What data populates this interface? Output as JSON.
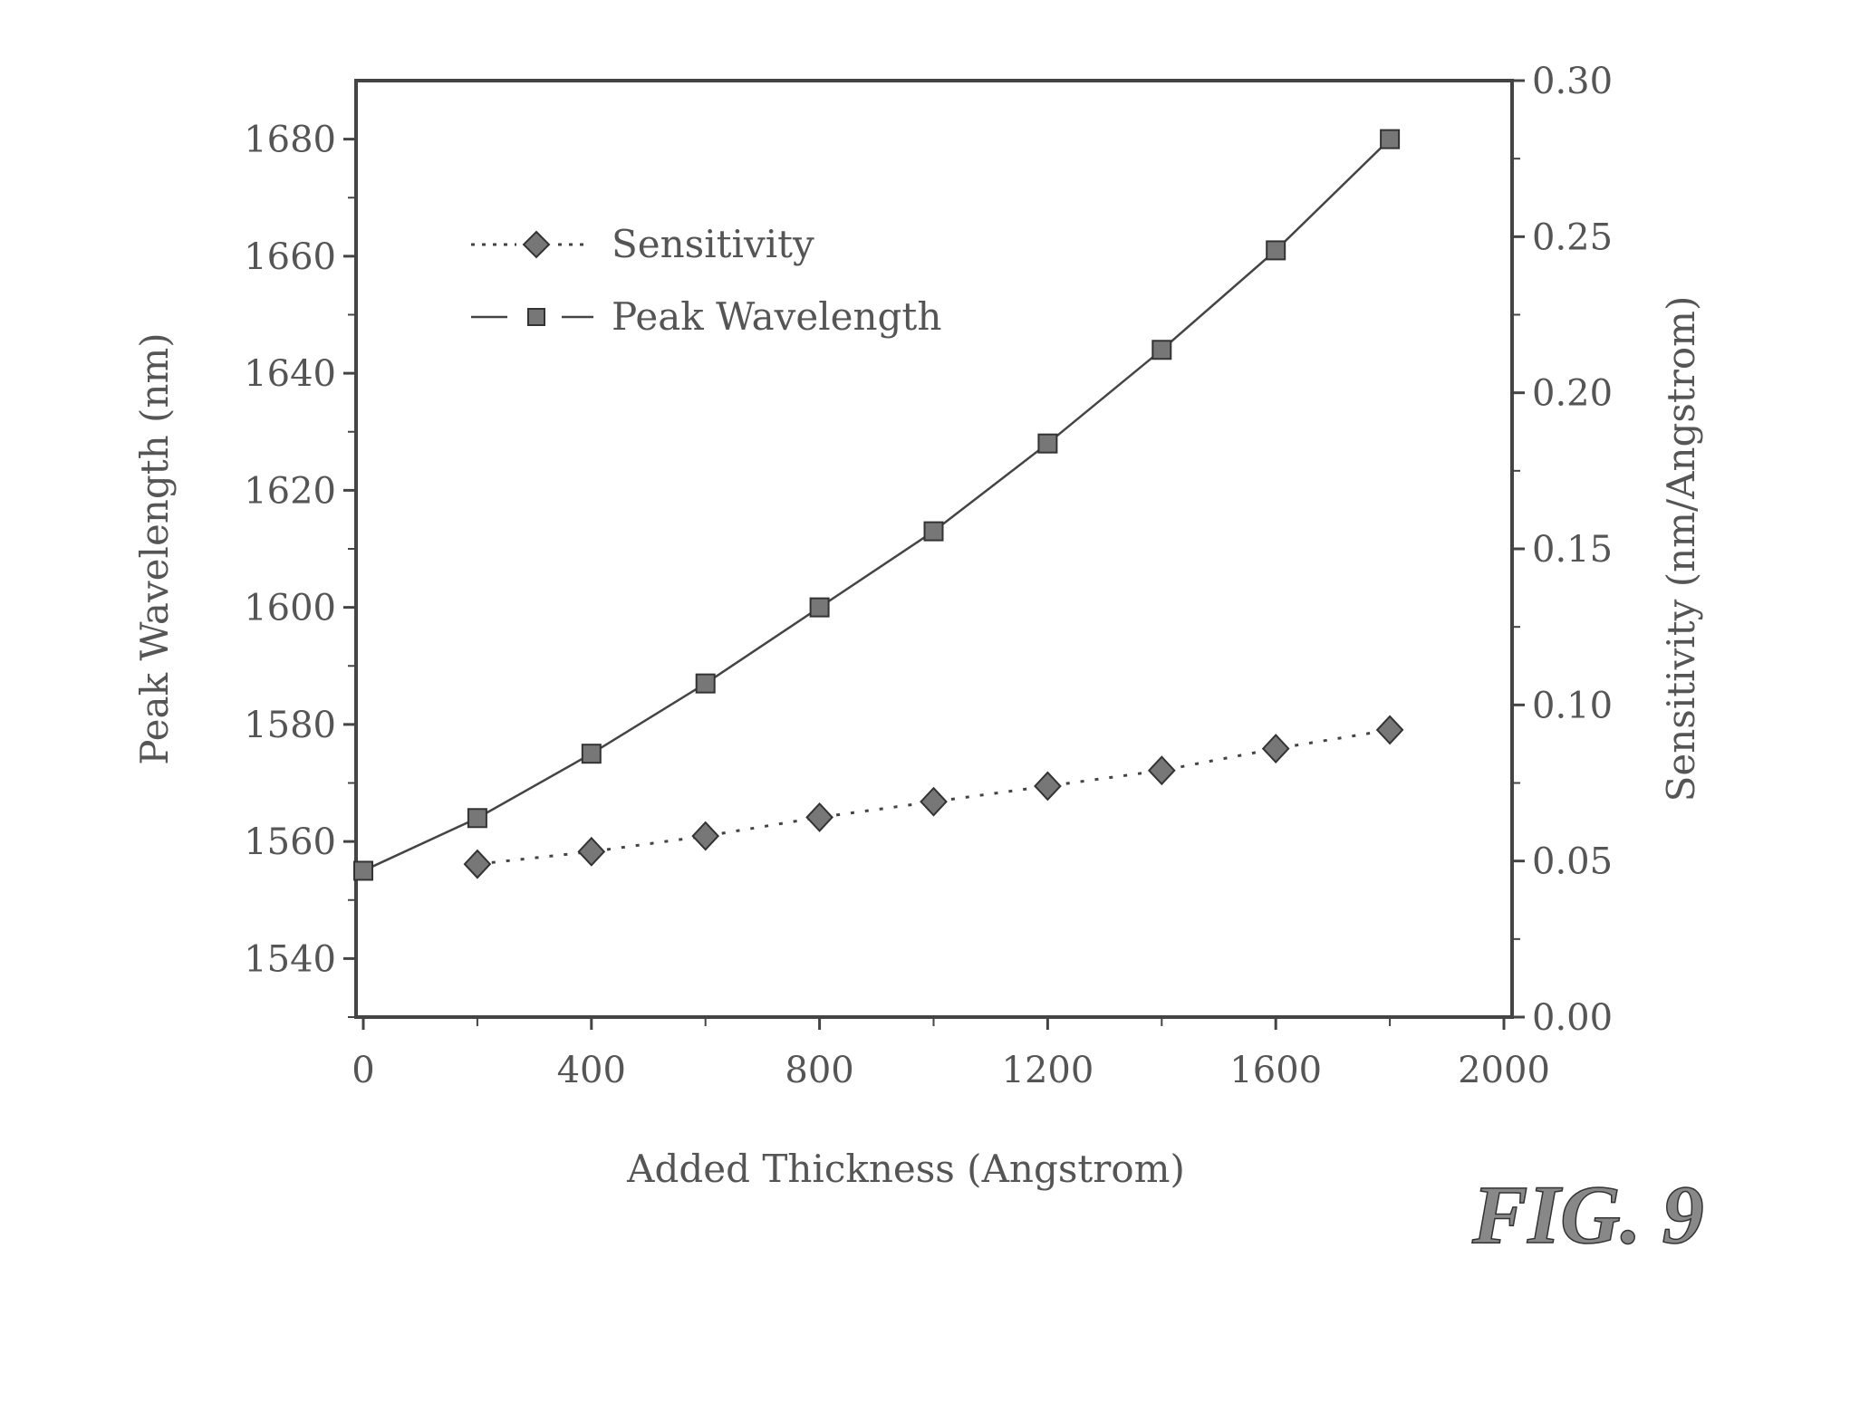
{
  "chart_data": {
    "type": "line",
    "title": "",
    "figure_label": "FIG. 9",
    "xlabel": "Added Thickness (Angstrom)",
    "ylabel": "Peak Wavelength (nm)",
    "y2label": "Sensitivity (nm/Angstrom)",
    "xlim": [
      0,
      2000
    ],
    "ylim": [
      1530,
      1690
    ],
    "y2lim": [
      0,
      0.3
    ],
    "xticks": [
      "0",
      "400",
      "800",
      "1200",
      "1600",
      "2000"
    ],
    "yticks": [
      "1540",
      "1560",
      "1580",
      "1600",
      "1620",
      "1640",
      "1660",
      "1680"
    ],
    "y2ticks": [
      "0.00",
      "0.05",
      "0.10",
      "0.15",
      "0.20",
      "0.25",
      "0.30"
    ],
    "grid": false,
    "legend_position": "top-left",
    "series": [
      {
        "name": "Sensitivity",
        "axis": "right",
        "marker": "diamond",
        "line": "dotted",
        "x": [
          200,
          400,
          600,
          800,
          1000,
          1200,
          1400,
          1600,
          1800
        ],
        "values": [
          0.049,
          0.053,
          0.058,
          0.064,
          0.069,
          0.074,
          0.079,
          0.086,
          0.092
        ]
      },
      {
        "name": "Peak Wavelength",
        "axis": "left",
        "marker": "square",
        "line": "solid",
        "x": [
          0,
          200,
          400,
          600,
          800,
          1000,
          1200,
          1400,
          1600,
          1800
        ],
        "values": [
          1555,
          1564,
          1575,
          1587,
          1600,
          1613,
          1628,
          1644,
          1661,
          1680
        ]
      }
    ]
  }
}
